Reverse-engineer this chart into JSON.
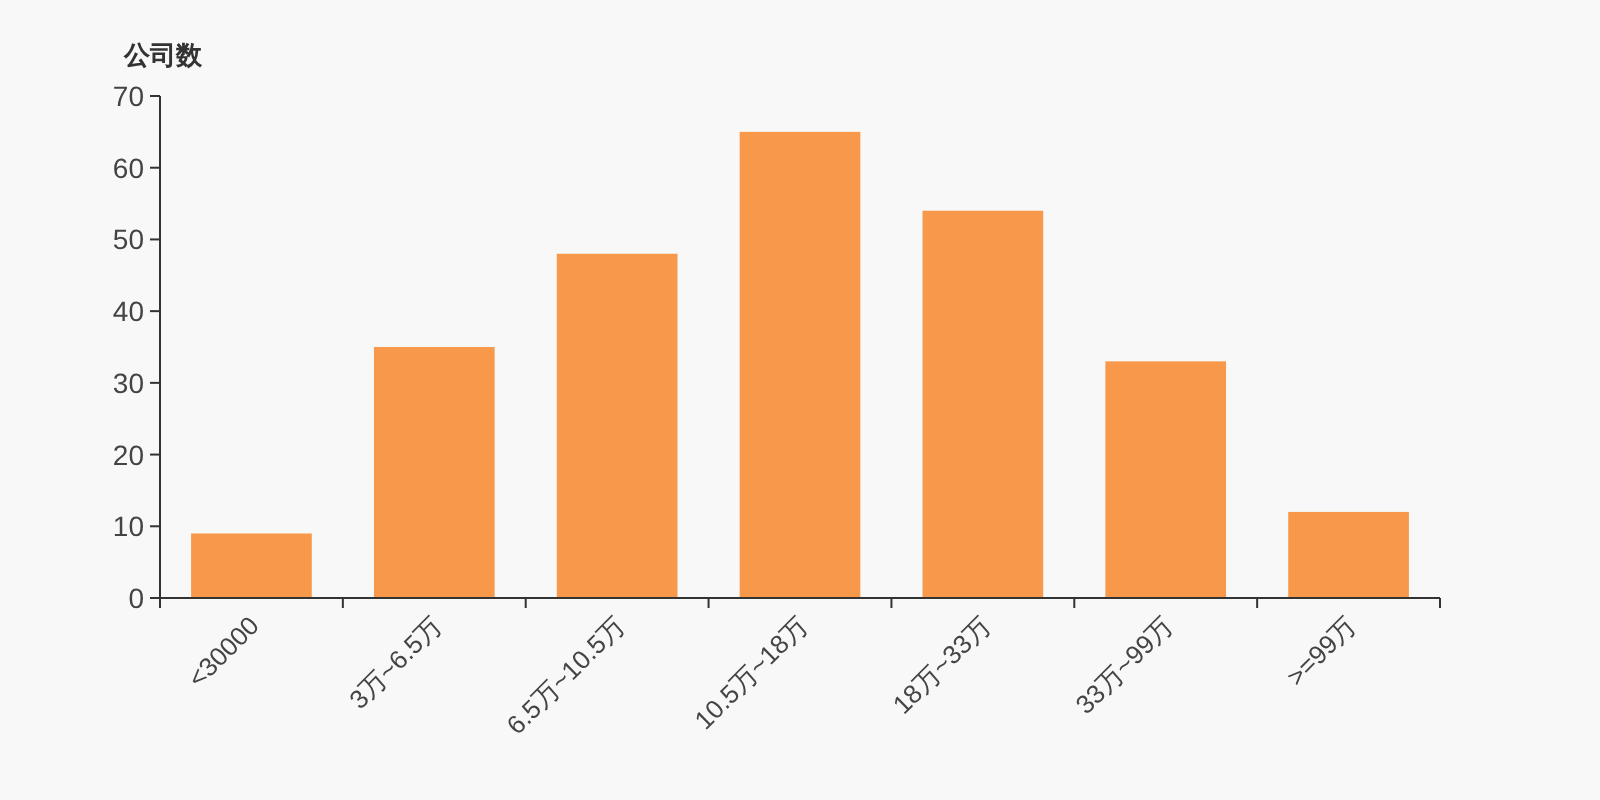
{
  "chart_data": {
    "type": "bar",
    "ylabel": "公司数",
    "categories": [
      "<30000",
      "3万~6.5万",
      "6.5万~10.5万",
      "10.5万~18万",
      "18万~33万",
      "33万~99万",
      ">=99万"
    ],
    "values": [
      9,
      35,
      48,
      65,
      54,
      33,
      12
    ],
    "color": "#f7984a",
    "ylim": [
      0,
      70
    ],
    "yticks": [
      0,
      10,
      20,
      30,
      40,
      50,
      60,
      70
    ],
    "grid": false
  }
}
